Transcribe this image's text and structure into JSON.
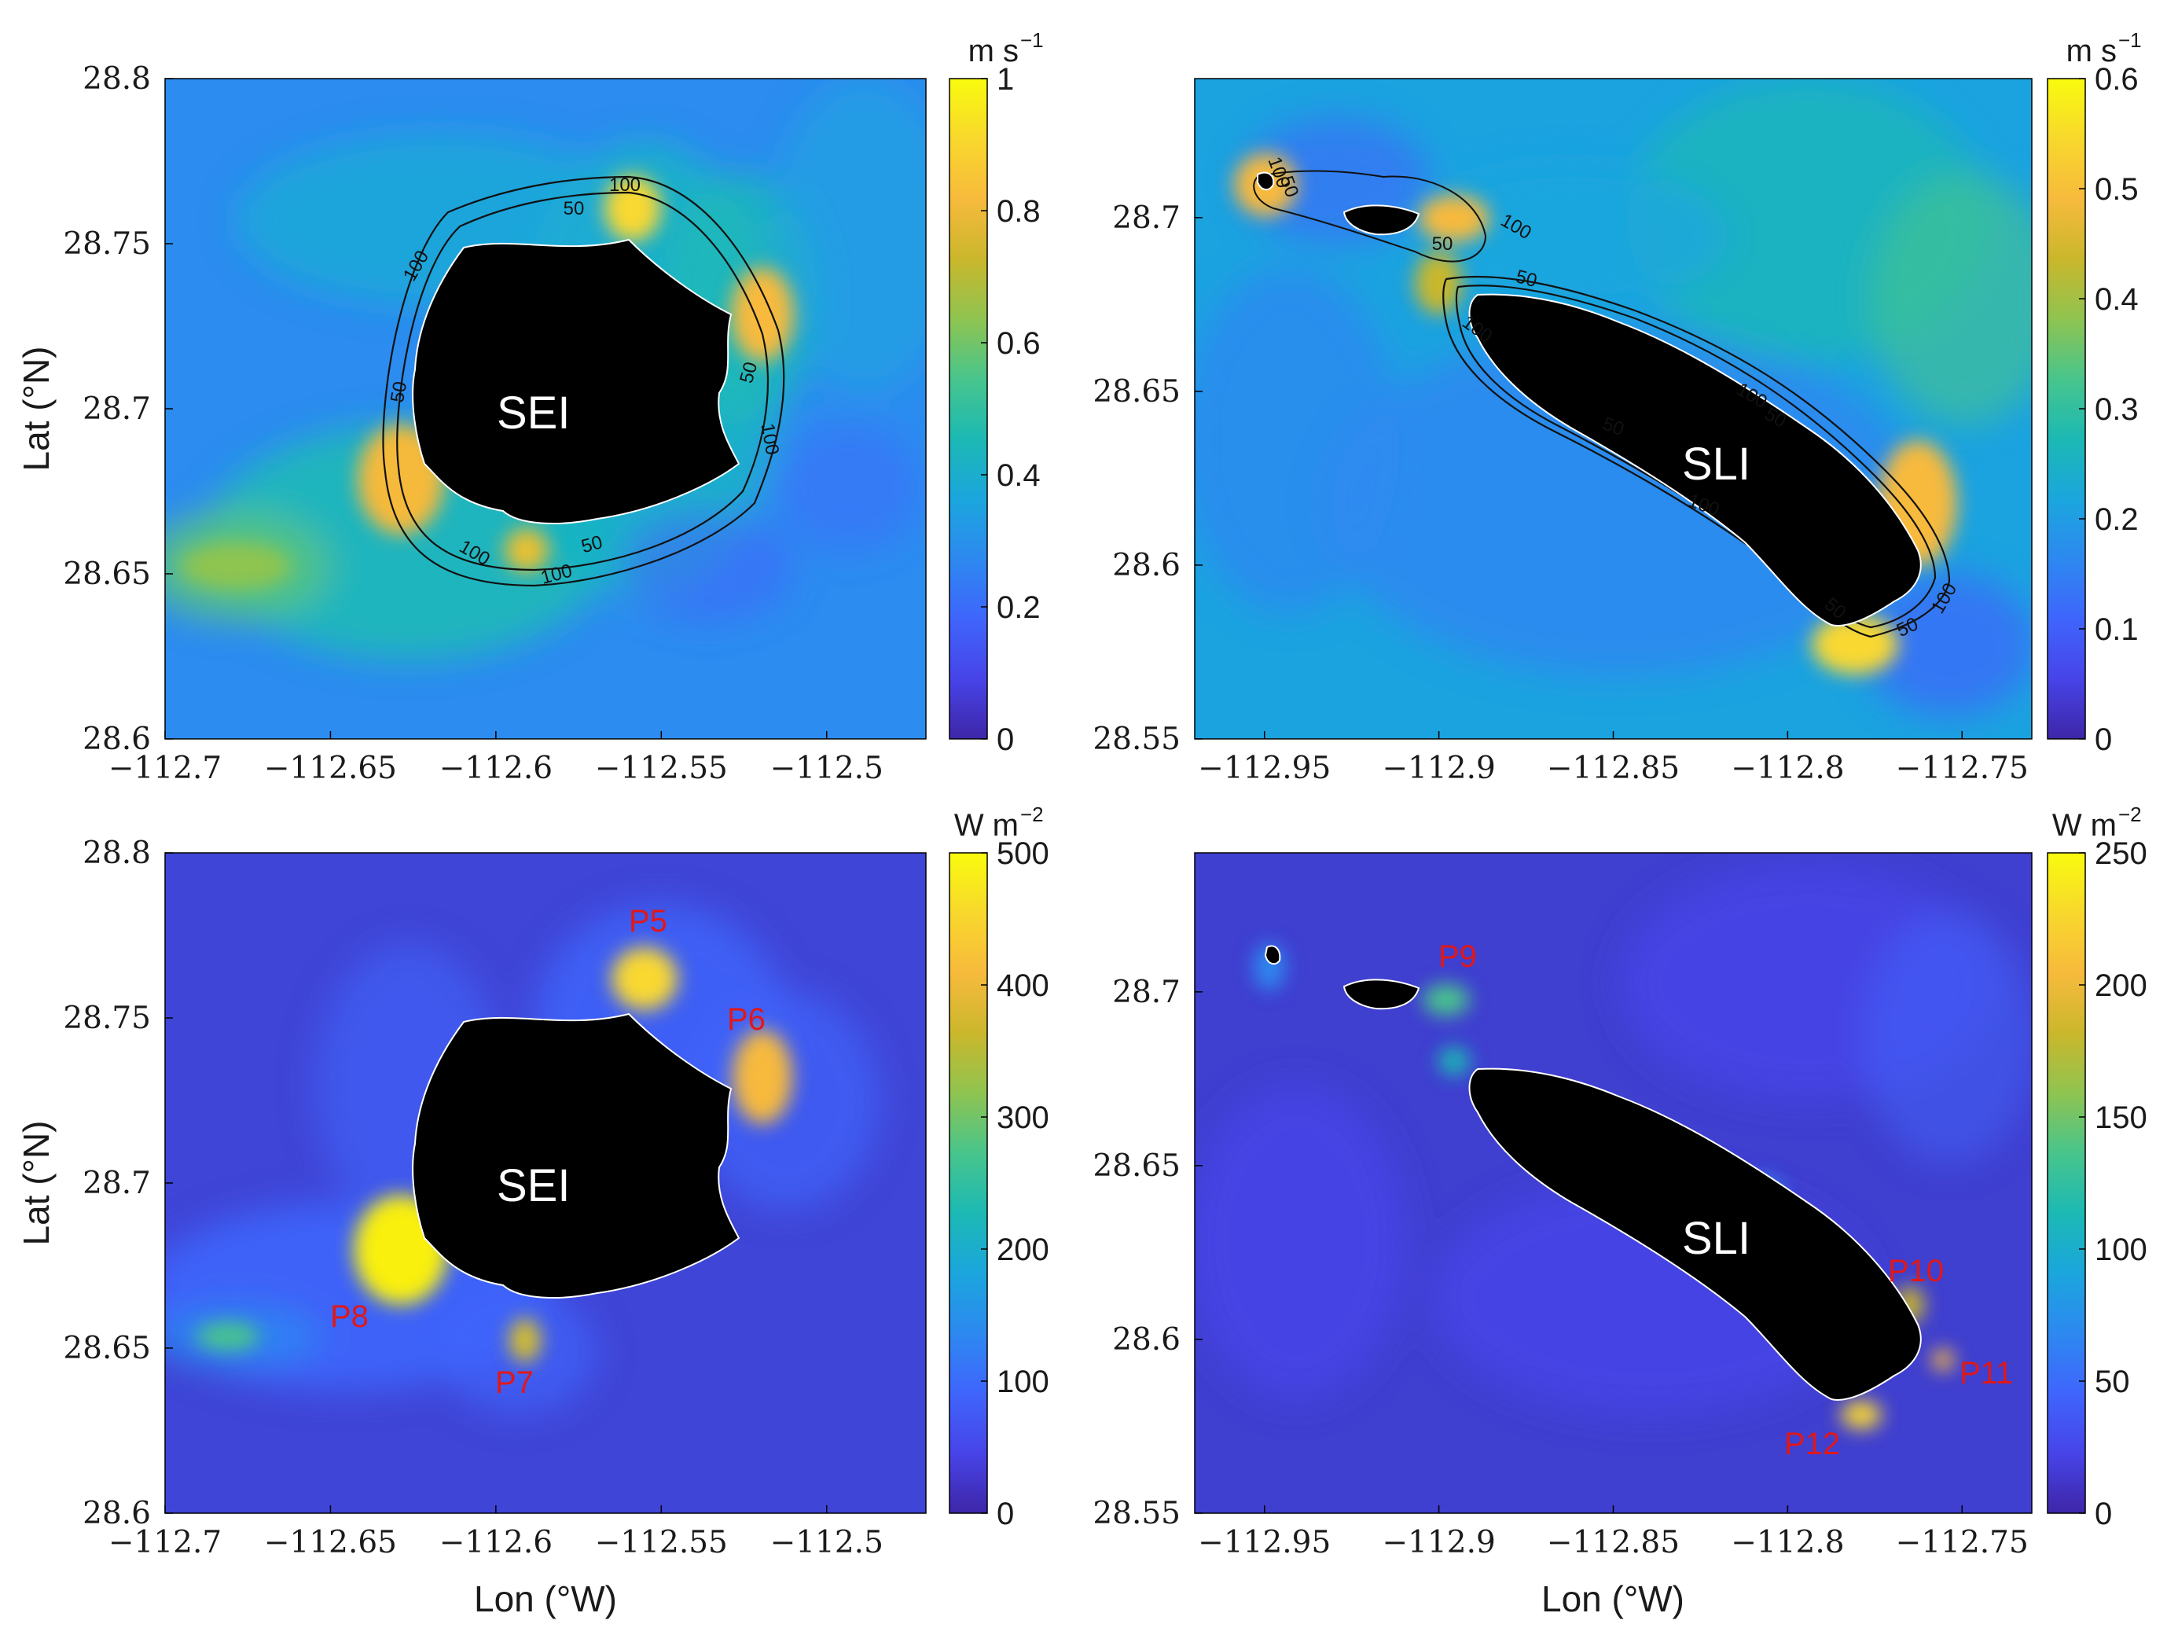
{
  "colors": {
    "parula": [
      "#3e26a8",
      "#4744e8",
      "#3f65fc",
      "#2d89f0",
      "#1ba6dd",
      "#1cb9b4",
      "#48c58c",
      "#8fc450",
      "#cbb72c",
      "#f7ba3c",
      "#f8d82c",
      "#f9fb0e"
    ]
  },
  "xlabel": "Lon (°W)",
  "ylabel": "Lat (°N)",
  "chart_data": [
    {
      "type": "heatmap",
      "panel": "a",
      "island": "SEI",
      "colorbar": {
        "unit": "m s",
        "unit_exp": "−1",
        "range": [
          0,
          1
        ],
        "ticks": [
          "0",
          "0.2",
          "0.4",
          "0.6",
          "0.8",
          "1"
        ]
      },
      "xlim": [
        -112.7,
        -112.47
      ],
      "ylim": [
        28.6,
        28.8
      ],
      "xticks": [
        "-112.7",
        "-112.65",
        "-112.6",
        "-112.55",
        "-112.5"
      ],
      "yticks": [
        "28.6",
        "28.65",
        "28.7",
        "28.75",
        "28.8"
      ],
      "contours": [
        "100",
        "50",
        "100",
        "50",
        "50",
        "100",
        "100",
        "50",
        "100"
      ],
      "hotspots": [
        {
          "lon": -112.555,
          "lat": 28.758,
          "value": 0.95
        },
        {
          "lon": -112.523,
          "lat": 28.73,
          "value": 0.85
        },
        {
          "lon": -112.624,
          "lat": 28.682,
          "value": 0.85
        },
        {
          "lon": -112.594,
          "lat": 28.655,
          "value": 0.8
        },
        {
          "lon": -112.68,
          "lat": 28.652,
          "value": 0.55
        }
      ]
    },
    {
      "type": "heatmap",
      "panel": "b",
      "island": "SLI",
      "colorbar": {
        "unit": "m s",
        "unit_exp": "−1",
        "range": [
          0,
          0.6
        ],
        "ticks": [
          "0",
          "0.1",
          "0.2",
          "0.3",
          "0.4",
          "0.5",
          "0.6"
        ]
      },
      "xlim": [
        -112.97,
        -112.73
      ],
      "ylim": [
        28.55,
        28.74
      ],
      "xticks": [
        "-112.95",
        "-112.9",
        "-112.85",
        "-112.8",
        "-112.75"
      ],
      "yticks": [
        "28.55",
        "28.6",
        "28.65",
        "28.7"
      ],
      "contours": [
        "100",
        "50",
        "50",
        "100",
        "100",
        "50",
        "50",
        "100",
        "50",
        "50",
        "100",
        "50",
        "100"
      ],
      "hotspots": [
        {
          "lon": -112.955,
          "lat": 28.705,
          "value": 0.55
        },
        {
          "lon": -112.9,
          "lat": 28.7,
          "value": 0.55
        },
        {
          "lon": -112.765,
          "lat": 28.607,
          "value": 0.55
        },
        {
          "lon": -112.776,
          "lat": 28.577,
          "value": 0.6
        },
        {
          "lon": -112.745,
          "lat": 28.62,
          "value": 0.45
        }
      ]
    },
    {
      "type": "heatmap",
      "panel": "c",
      "island": "SEI",
      "colorbar": {
        "unit": "W m",
        "unit_exp": "−2",
        "range": [
          0,
          500
        ],
        "ticks": [
          "0",
          "100",
          "200",
          "300",
          "400",
          "500"
        ]
      },
      "xlim": [
        -112.7,
        -112.47
      ],
      "ylim": [
        28.6,
        28.8
      ],
      "xticks": [
        "-112.7",
        "-112.65",
        "-112.6",
        "-112.55",
        "-112.5"
      ],
      "yticks": [
        "28.6",
        "28.65",
        "28.7",
        "28.75",
        "28.8"
      ],
      "points": [
        {
          "label": "P5",
          "lon": -112.557,
          "lat": 28.764,
          "value": 500
        },
        {
          "label": "P6",
          "lon": -112.524,
          "lat": 28.727,
          "value": 460
        },
        {
          "label": "P7",
          "lon": -112.597,
          "lat": 28.654,
          "value": 430
        },
        {
          "label": "P8",
          "lon": -112.627,
          "lat": 28.68,
          "value": 500
        }
      ]
    },
    {
      "type": "heatmap",
      "panel": "d",
      "island": "SLI",
      "colorbar": {
        "unit": "W m",
        "unit_exp": "−2",
        "range": [
          0,
          250
        ],
        "ticks": [
          "0",
          "50",
          "100",
          "150",
          "200",
          "250"
        ]
      },
      "xlim": [
        -112.97,
        -112.73
      ],
      "ylim": [
        28.55,
        28.74
      ],
      "xticks": [
        "-112.95",
        "-112.9",
        "-112.85",
        "-112.8",
        "-112.75"
      ],
      "yticks": [
        "28.55",
        "28.6",
        "28.65",
        "28.7"
      ],
      "points": [
        {
          "label": "P9",
          "lon": -112.896,
          "lat": 28.696,
          "value": 170
        },
        {
          "label": "P10",
          "lon": -112.765,
          "lat": 28.607,
          "value": 200
        },
        {
          "label": "P11",
          "lon": -112.757,
          "lat": 28.592,
          "value": 230
        },
        {
          "label": "P12",
          "lon": -112.775,
          "lat": 28.577,
          "value": 250
        }
      ]
    }
  ]
}
